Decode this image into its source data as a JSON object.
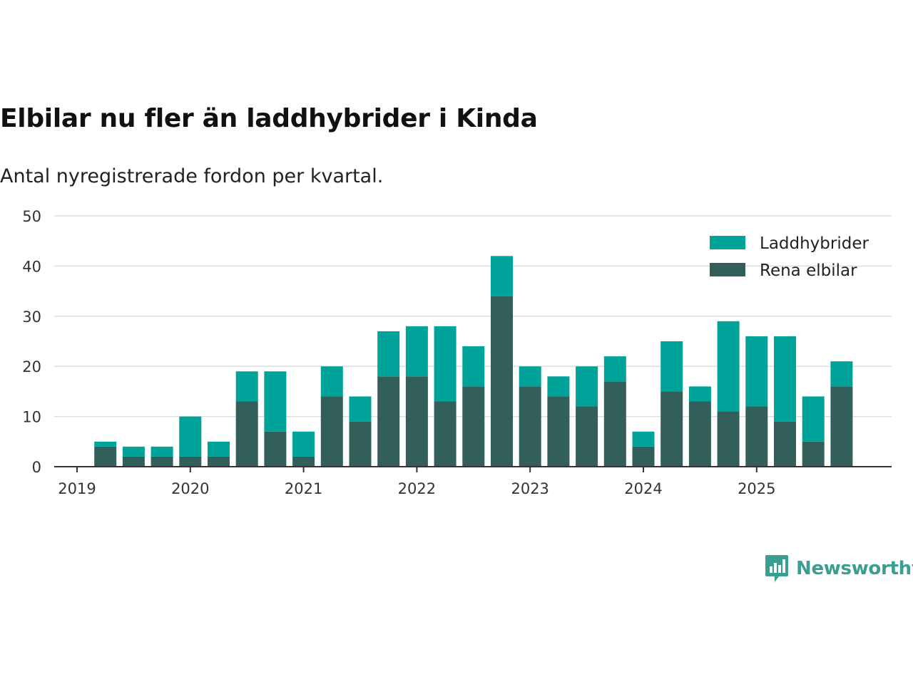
{
  "title": "Elbilar nu fler än laddhybrider i Kinda",
  "subtitle": "Antal nyregistrerade fordon per kvartal.",
  "brand": "Newsworthy",
  "colors": {
    "laddhybrider": "#00a39a",
    "rena_elbilar": "#335f5b",
    "grid": "#dddddd",
    "axis": "#333333",
    "brand": "#3a9e93"
  },
  "chart_data": {
    "type": "bar",
    "stacked": true,
    "title": "Elbilar nu fler än laddhybrider i Kinda",
    "subtitle": "Antal nyregistrerade fordon per kvartal.",
    "categories": [
      "2019 Q1",
      "2019 Q2",
      "2019 Q3",
      "2019 Q4",
      "2020 Q1",
      "2020 Q2",
      "2020 Q3",
      "2020 Q4",
      "2021 Q1",
      "2021 Q2",
      "2021 Q3",
      "2021 Q4",
      "2022 Q1",
      "2022 Q2",
      "2022 Q3",
      "2022 Q4",
      "2023 Q1",
      "2023 Q2",
      "2023 Q3",
      "2023 Q4",
      "2024 Q1",
      "2024 Q2",
      "2024 Q3",
      "2024 Q4",
      "2025 Q1",
      "2025 Q2",
      "2025 Q3",
      "2025 Q4"
    ],
    "series": [
      {
        "name": "Rena elbilar",
        "values": [
          0,
          4,
          2,
          2,
          2,
          2,
          13,
          7,
          2,
          14,
          9,
          18,
          18,
          13,
          16,
          34,
          16,
          14,
          12,
          17,
          4,
          15,
          13,
          11,
          12,
          9,
          5,
          16
        ]
      },
      {
        "name": "Laddhybrider",
        "values": [
          0,
          1,
          2,
          2,
          8,
          3,
          6,
          12,
          5,
          6,
          5,
          9,
          10,
          15,
          8,
          8,
          4,
          4,
          8,
          5,
          3,
          10,
          3,
          18,
          14,
          17,
          9,
          5
        ]
      }
    ],
    "legend": [
      "Laddhybrider",
      "Rena elbilar"
    ],
    "legend_position": "top-right",
    "x_ticks": [
      "2019",
      "2020",
      "2021",
      "2022",
      "2023",
      "2024",
      "2025"
    ],
    "y_ticks": [
      0,
      10,
      20,
      30,
      40,
      50
    ],
    "ylim": [
      0,
      50
    ],
    "grid": true
  }
}
